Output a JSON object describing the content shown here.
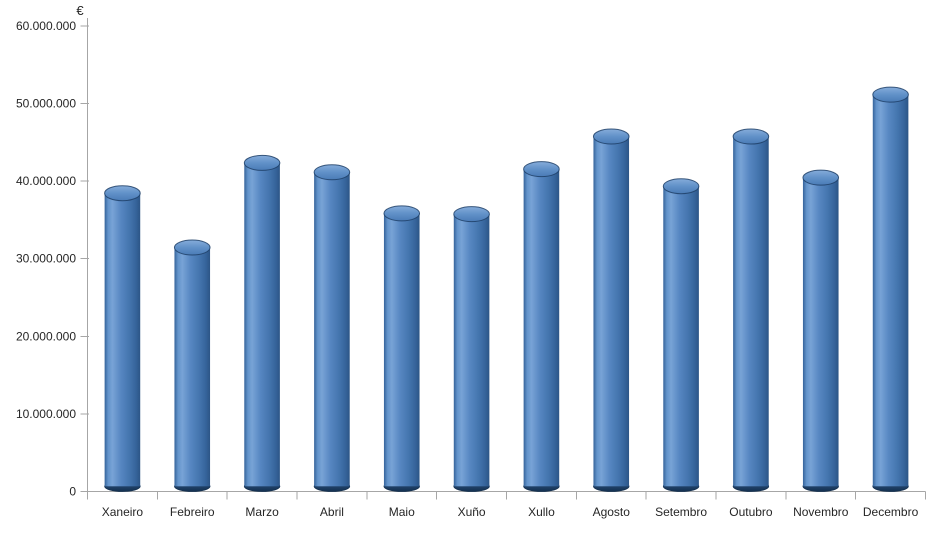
{
  "chart_data": {
    "type": "bar",
    "subtype": "3d-cylinder",
    "title": "",
    "xlabel": "",
    "ylabel": "€",
    "legend": "none",
    "grid": "off",
    "ylim": [
      0,
      60000000
    ],
    "y_tick_interval": 10000000,
    "y_tick_labels": [
      "0",
      "10.000.000",
      "20.000.000",
      "30.000.000",
      "40.000.000",
      "50.000.000",
      "60.000.000"
    ],
    "categories": [
      "Xaneiro",
      "Febreiro",
      "Marzo",
      "Abril",
      "Maio",
      "Xuño",
      "Xullo",
      "Agosto",
      "Setembro",
      "Outubro",
      "Novembro",
      "Decembro"
    ],
    "values": [
      39400000,
      32400000,
      43300000,
      42100000,
      36800000,
      36700000,
      42500000,
      46700000,
      40300000,
      46700000,
      41400000,
      52100000
    ],
    "colors": {
      "bar_main": "#4F81BD",
      "bar_highlight": "#78A3D6",
      "bar_edge_dark": "#2C5586",
      "bar_bottom_rim": "#14304F",
      "axis_line": "#A6A6A6",
      "label_text": "#262626",
      "background": "#FFFFFF"
    }
  }
}
